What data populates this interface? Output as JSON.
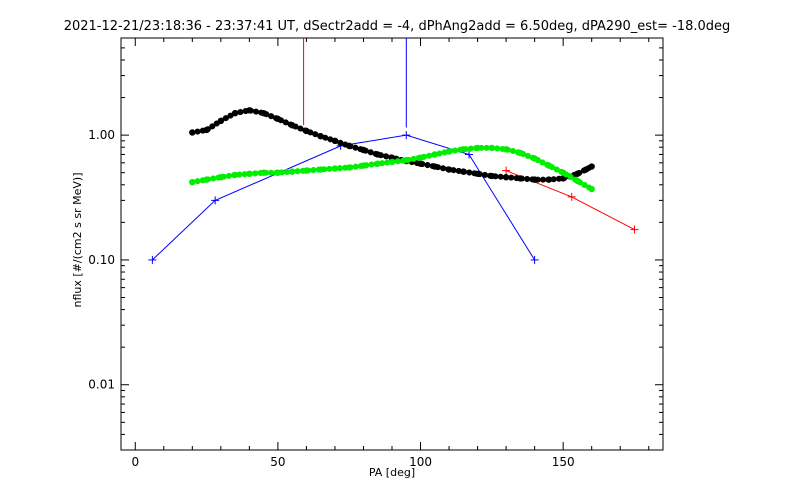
{
  "chart_data": {
    "type": "line",
    "title": "2021-12-21/23:18:36 - 23:37:41 UT, dSectr2add = -4, dPhAng2add = 6.50deg, dPA290_est= -18.0deg",
    "xlabel": "PA [deg]",
    "ylabel": "nflux [#/(cm2 s sr MeV)]",
    "xlim": [
      -5,
      185
    ],
    "ylim": [
      0.003,
      6
    ],
    "yscale": "log",
    "xticks": [
      0,
      50,
      100,
      150
    ],
    "xtick_labels": [
      "0",
      "50",
      "100",
      "150"
    ],
    "yticks": [
      0.01,
      0.1,
      1.0
    ],
    "ytick_labels": [
      "0.01",
      "0.10",
      "1.00"
    ],
    "grid": false,
    "series": [
      {
        "color": "#0000ff",
        "marker": "plus",
        "style": "line",
        "x": [
          6,
          28,
          72,
          95,
          117,
          140
        ],
        "y": [
          0.1,
          0.3,
          0.82,
          1.0,
          0.7,
          0.1
        ]
      },
      {
        "color": "#ff0000",
        "marker": "plus",
        "style": "line",
        "x": [
          130,
          153,
          175
        ],
        "y": [
          0.52,
          0.32,
          0.175
        ]
      },
      {
        "color": "#000000",
        "marker": "dot",
        "style": "thick-dotted",
        "x": [
          20,
          25,
          30,
          35,
          40,
          45,
          50,
          55,
          60,
          65,
          70,
          75,
          80,
          85,
          90,
          95,
          100,
          105,
          110,
          115,
          120,
          125,
          130,
          135,
          140,
          145,
          150,
          155,
          158,
          160
        ],
        "y": [
          1.05,
          1.1,
          1.3,
          1.5,
          1.58,
          1.5,
          1.35,
          1.2,
          1.08,
          0.98,
          0.9,
          0.82,
          0.76,
          0.7,
          0.66,
          0.62,
          0.59,
          0.56,
          0.53,
          0.51,
          0.49,
          0.47,
          0.46,
          0.45,
          0.44,
          0.44,
          0.45,
          0.49,
          0.53,
          0.56
        ]
      },
      {
        "color": "#00ee00",
        "marker": "dot",
        "style": "thick-dotted",
        "x": [
          20,
          25,
          30,
          35,
          40,
          45,
          50,
          55,
          60,
          65,
          70,
          75,
          80,
          85,
          90,
          95,
          100,
          105,
          110,
          115,
          120,
          125,
          130,
          135,
          140,
          145,
          150,
          155,
          160
        ],
        "y": [
          0.42,
          0.44,
          0.46,
          0.48,
          0.49,
          0.5,
          0.5,
          0.51,
          0.52,
          0.53,
          0.54,
          0.55,
          0.57,
          0.59,
          0.61,
          0.63,
          0.66,
          0.7,
          0.74,
          0.77,
          0.79,
          0.79,
          0.77,
          0.72,
          0.65,
          0.57,
          0.5,
          0.43,
          0.37
        ]
      },
      {
        "color": "#ff0000",
        "marker": "none",
        "style": "line",
        "x": [
          59,
          59
        ],
        "y": [
          6,
          1.2
        ]
      },
      {
        "color": "#0000ff",
        "marker": "none",
        "style": "line",
        "x": [
          95,
          95
        ],
        "y": [
          6,
          1.15
        ]
      }
    ]
  }
}
